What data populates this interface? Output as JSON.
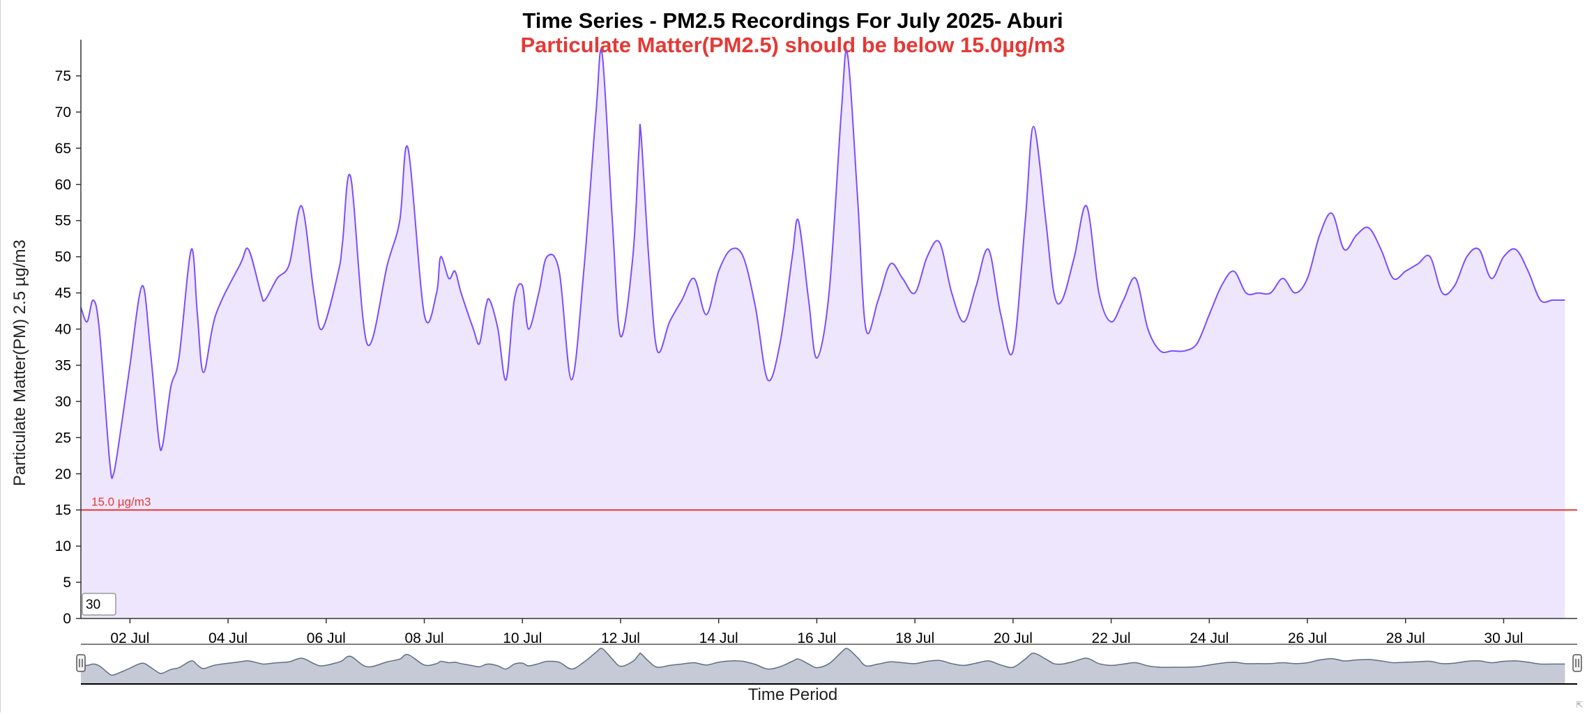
{
  "colors": {
    "line": "#7c4dff",
    "area": "#eee6fd",
    "threshold": "#e53935",
    "axis": "#333333",
    "navigator_fill": "#c5cad6",
    "navigator_line": "#5e6e85"
  },
  "ui": {
    "window_value": "30"
  },
  "chart_data": {
    "type": "area",
    "title": "Time Series - PM2.5 Recordings For July 2025- Aburi",
    "subtitle": "Particulate Matter(PM2.5) should be below 15.0µg/m3",
    "xlabel": "Time Period",
    "ylabel": "Particulate Matter(PM) 2.5 µg/m3",
    "x_start": "2025-07-01",
    "x_end": "2025-07-31",
    "ylim": [
      0,
      80
    ],
    "y_ticks": [
      0,
      5,
      10,
      15,
      20,
      25,
      30,
      35,
      40,
      45,
      50,
      55,
      60,
      65,
      70,
      75
    ],
    "x_ticks": [
      "02 Jul",
      "04 Jul",
      "06 Jul",
      "08 Jul",
      "10 Jul",
      "12 Jul",
      "14 Jul",
      "16 Jul",
      "18 Jul",
      "20 Jul",
      "22 Jul",
      "24 Jul",
      "26 Jul",
      "28 Jul",
      "30 Jul"
    ],
    "threshold": {
      "value": 15.0,
      "label": "15.0 µg/m3"
    },
    "series": [
      {
        "points": [
          [
            "2025-07-01 00:00",
            43
          ],
          [
            "2025-07-01 03:00",
            41
          ],
          [
            "2025-07-01 06:00",
            44
          ],
          [
            "2025-07-01 09:00",
            40
          ],
          [
            "2025-07-01 14:00",
            22
          ],
          [
            "2025-07-01 16:00",
            20
          ],
          [
            "2025-07-01 20:00",
            27
          ],
          [
            "2025-07-02 00:00",
            35
          ],
          [
            "2025-07-02 06:00",
            46
          ],
          [
            "2025-07-02 10:00",
            37
          ],
          [
            "2025-07-02 14:00",
            25
          ],
          [
            "2025-07-02 16:00",
            24
          ],
          [
            "2025-07-02 20:00",
            32
          ],
          [
            "2025-07-03 00:00",
            36
          ],
          [
            "2025-07-03 06:00",
            51
          ],
          [
            "2025-07-03 09:00",
            42
          ],
          [
            "2025-07-03 12:00",
            34
          ],
          [
            "2025-07-03 18:00",
            42
          ],
          [
            "2025-07-04 06:00",
            49
          ],
          [
            "2025-07-04 10:00",
            51
          ],
          [
            "2025-07-04 16:00",
            45
          ],
          [
            "2025-07-04 18:00",
            44
          ],
          [
            "2025-07-05 00:00",
            47
          ],
          [
            "2025-07-05 06:00",
            49
          ],
          [
            "2025-07-05 12:00",
            57
          ],
          [
            "2025-07-05 18:00",
            45
          ],
          [
            "2025-07-05 22:00",
            40
          ],
          [
            "2025-07-06 06:00",
            48
          ],
          [
            "2025-07-06 08:00",
            52
          ],
          [
            "2025-07-06 12:00",
            61
          ],
          [
            "2025-07-06 20:00",
            38
          ],
          [
            "2025-07-07 06:00",
            49
          ],
          [
            "2025-07-07 12:00",
            55
          ],
          [
            "2025-07-07 16:00",
            65
          ],
          [
            "2025-07-08 00:00",
            42
          ],
          [
            "2025-07-08 06:00",
            45
          ],
          [
            "2025-07-08 08:00",
            50
          ],
          [
            "2025-07-08 12:00",
            47
          ],
          [
            "2025-07-08 15:00",
            48
          ],
          [
            "2025-07-08 18:00",
            45
          ],
          [
            "2025-07-09 00:00",
            40
          ],
          [
            "2025-07-09 03:00",
            38
          ],
          [
            "2025-07-09 06:00",
            43
          ],
          [
            "2025-07-09 08:00",
            44
          ],
          [
            "2025-07-09 12:00",
            40
          ],
          [
            "2025-07-09 16:00",
            33
          ],
          [
            "2025-07-09 20:00",
            44
          ],
          [
            "2025-07-10 00:00",
            46
          ],
          [
            "2025-07-10 03:00",
            40
          ],
          [
            "2025-07-10 08:00",
            45
          ],
          [
            "2025-07-10 12:00",
            50
          ],
          [
            "2025-07-10 18:00",
            48
          ],
          [
            "2025-07-11 00:00",
            33
          ],
          [
            "2025-07-11 06:00",
            48
          ],
          [
            "2025-07-11 12:00",
            70
          ],
          [
            "2025-07-11 15:00",
            78
          ],
          [
            "2025-07-11 20:00",
            55
          ],
          [
            "2025-07-12 00:00",
            39
          ],
          [
            "2025-07-12 06:00",
            50
          ],
          [
            "2025-07-12 09:00",
            65
          ],
          [
            "2025-07-12 10:00",
            67
          ],
          [
            "2025-07-12 14:00",
            49
          ],
          [
            "2025-07-12 18:00",
            37
          ],
          [
            "2025-07-13 00:00",
            41
          ],
          [
            "2025-07-13 06:00",
            44
          ],
          [
            "2025-07-13 12:00",
            47
          ],
          [
            "2025-07-13 18:00",
            42
          ],
          [
            "2025-07-14 00:00",
            48
          ],
          [
            "2025-07-14 06:00",
            51
          ],
          [
            "2025-07-14 12:00",
            50
          ],
          [
            "2025-07-14 18:00",
            43
          ],
          [
            "2025-07-15 00:00",
            33
          ],
          [
            "2025-07-15 06:00",
            38
          ],
          [
            "2025-07-15 12:00",
            50
          ],
          [
            "2025-07-15 15:00",
            55
          ],
          [
            "2025-07-15 20:00",
            44
          ],
          [
            "2025-07-16 00:00",
            36
          ],
          [
            "2025-07-16 06:00",
            45
          ],
          [
            "2025-07-16 12:00",
            70
          ],
          [
            "2025-07-16 15:00",
            78
          ],
          [
            "2025-07-16 20:00",
            58
          ],
          [
            "2025-07-17 00:00",
            40
          ],
          [
            "2025-07-17 06:00",
            44
          ],
          [
            "2025-07-17 12:00",
            49
          ],
          [
            "2025-07-17 18:00",
            47
          ],
          [
            "2025-07-18 00:00",
            45
          ],
          [
            "2025-07-18 06:00",
            50
          ],
          [
            "2025-07-18 12:00",
            52
          ],
          [
            "2025-07-18 18:00",
            45
          ],
          [
            "2025-07-19 00:00",
            41
          ],
          [
            "2025-07-19 06:00",
            46
          ],
          [
            "2025-07-19 12:00",
            51
          ],
          [
            "2025-07-19 18:00",
            42
          ],
          [
            "2025-07-20 00:00",
            37
          ],
          [
            "2025-07-20 06:00",
            55
          ],
          [
            "2025-07-20 10:00",
            68
          ],
          [
            "2025-07-20 16:00",
            55
          ],
          [
            "2025-07-20 20:00",
            45
          ],
          [
            "2025-07-21 00:00",
            44
          ],
          [
            "2025-07-21 06:00",
            50
          ],
          [
            "2025-07-21 12:00",
            57
          ],
          [
            "2025-07-21 18:00",
            45
          ],
          [
            "2025-07-22 00:00",
            41
          ],
          [
            "2025-07-22 06:00",
            44
          ],
          [
            "2025-07-22 12:00",
            47
          ],
          [
            "2025-07-22 18:00",
            40
          ],
          [
            "2025-07-23 00:00",
            37
          ],
          [
            "2025-07-23 06:00",
            37
          ],
          [
            "2025-07-23 12:00",
            37
          ],
          [
            "2025-07-23 18:00",
            38
          ],
          [
            "2025-07-24 00:00",
            42
          ],
          [
            "2025-07-24 06:00",
            46
          ],
          [
            "2025-07-24 12:00",
            48
          ],
          [
            "2025-07-24 18:00",
            45
          ],
          [
            "2025-07-25 00:00",
            45
          ],
          [
            "2025-07-25 06:00",
            45
          ],
          [
            "2025-07-25 12:00",
            47
          ],
          [
            "2025-07-25 18:00",
            45
          ],
          [
            "2025-07-26 00:00",
            47
          ],
          [
            "2025-07-26 06:00",
            53
          ],
          [
            "2025-07-26 12:00",
            56
          ],
          [
            "2025-07-26 18:00",
            51
          ],
          [
            "2025-07-27 00:00",
            53
          ],
          [
            "2025-07-27 06:00",
            54
          ],
          [
            "2025-07-27 12:00",
            51
          ],
          [
            "2025-07-27 18:00",
            47
          ],
          [
            "2025-07-28 00:00",
            48
          ],
          [
            "2025-07-28 06:00",
            49
          ],
          [
            "2025-07-28 12:00",
            50
          ],
          [
            "2025-07-28 18:00",
            45
          ],
          [
            "2025-07-29 00:00",
            46
          ],
          [
            "2025-07-29 06:00",
            50
          ],
          [
            "2025-07-29 12:00",
            51
          ],
          [
            "2025-07-29 18:00",
            47
          ],
          [
            "2025-07-30 00:00",
            50
          ],
          [
            "2025-07-30 06:00",
            51
          ],
          [
            "2025-07-30 12:00",
            48
          ],
          [
            "2025-07-30 18:00",
            44
          ],
          [
            "2025-07-31 00:00",
            44
          ],
          [
            "2025-07-31 06:00",
            44
          ]
        ]
      }
    ]
  }
}
